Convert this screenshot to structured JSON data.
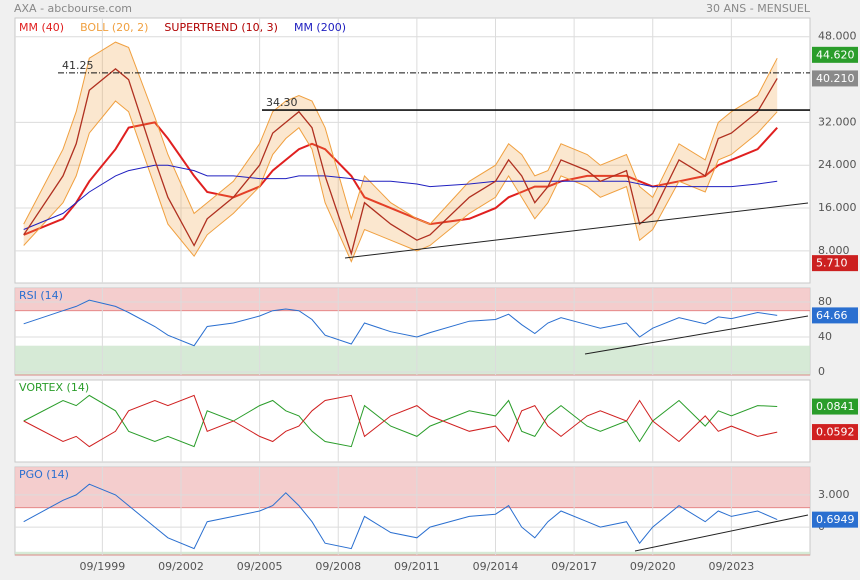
{
  "header": {
    "title": "AXA - abcbourse.com",
    "period": "30 ANS - MENSUEL"
  },
  "time": {
    "x": [
      "09/1996",
      "03/1998",
      "09/1998",
      "03/1999",
      "03/2000",
      "09/2000",
      "09/2001",
      "03/2002",
      "03/2003",
      "09/2003",
      "09/2004",
      "09/2005",
      "03/2006",
      "09/2006",
      "03/2007",
      "09/2007",
      "03/2008",
      "03/2009",
      "09/2009",
      "09/2010",
      "09/2011",
      "03/2012",
      "09/2013",
      "09/2014",
      "03/2015",
      "09/2015",
      "03/2016",
      "09/2016",
      "03/2017",
      "03/2018",
      "09/2018",
      "09/2019",
      "03/2020",
      "09/2020",
      "09/2021",
      "09/2022",
      "03/2023",
      "09/2023",
      "09/2024",
      "06/2025"
    ],
    "xlim": [
      "05/1996",
      "09/2026"
    ],
    "xticks": [
      "09/1999",
      "09/2002",
      "09/2005",
      "09/2008",
      "09/2011",
      "09/2014",
      "09/2017",
      "09/2020",
      "09/2023"
    ]
  },
  "chart_data": [
    {
      "type": "line",
      "ylim": [
        2,
        51.5
      ],
      "yticks": [
        {
          "value": 8,
          "label": "8.000"
        },
        {
          "value": 16,
          "label": "16.000"
        },
        {
          "value": 24,
          "label": "24.000"
        },
        {
          "value": 32,
          "label": "32.000"
        },
        {
          "value": 48,
          "label": "48.000"
        }
      ],
      "grid": true,
      "price": {
        "color": "#b03020",
        "values": [
          11,
          22,
          28,
          38,
          42,
          40,
          25,
          18,
          9,
          14,
          18,
          24,
          30,
          32,
          34,
          31,
          22,
          7.5,
          17,
          13,
          10,
          11,
          18,
          21,
          25,
          22,
          17,
          20,
          25,
          23,
          21,
          23,
          13,
          15,
          25,
          22,
          29,
          30,
          34,
          40.21
        ]
      },
      "series": [
        {
          "name": "MM (40)",
          "color": "#e02020",
          "values": [
            11,
            14,
            17,
            21,
            27,
            31,
            32,
            29,
            22,
            19,
            18,
            20,
            23,
            25,
            27,
            28,
            27,
            22,
            18,
            16,
            14,
            13,
            14,
            16,
            18,
            19,
            20,
            20,
            21,
            22,
            22,
            22,
            21,
            20,
            21,
            22,
            24,
            25,
            27,
            31
          ]
        },
        {
          "name": "BOLL (20, 2)",
          "color": "#f0a040",
          "values": [
            13,
            27,
            34,
            44,
            47,
            46,
            33,
            26,
            15,
            17,
            21,
            28,
            34,
            36,
            37,
            36,
            31,
            14,
            22,
            17,
            14,
            13,
            21,
            24,
            28,
            26,
            22,
            23,
            28,
            26,
            24,
            26,
            20,
            18,
            28,
            25,
            32,
            34,
            37,
            44
          ],
          "lower": [
            9,
            17,
            22,
            30,
            36,
            34,
            20,
            13,
            7,
            11,
            15,
            20,
            26,
            29,
            31,
            27,
            17,
            6,
            12,
            10,
            8,
            9,
            15,
            18,
            22,
            18,
            14,
            17,
            22,
            20,
            18,
            20,
            10,
            12,
            21,
            19,
            25,
            26,
            30,
            34
          ]
        },
        {
          "name": "SUPERTREND (10, 3)",
          "color": "#b00000"
        },
        {
          "name": "MM (200)",
          "color": "#2020c0",
          "values": [
            12,
            15,
            17,
            19,
            22,
            23,
            24,
            24,
            23,
            22,
            22,
            21.5,
            21.5,
            21.5,
            22,
            22,
            22,
            21.5,
            21,
            21,
            20.5,
            20,
            20.5,
            21,
            21,
            21,
            21,
            21,
            21,
            21,
            21,
            21,
            20.5,
            20,
            20,
            20,
            20,
            20,
            20.5,
            21
          ]
        }
      ],
      "levels": [
        {
          "value": 41.25,
          "label": "41.25",
          "style": "dashdot"
        },
        {
          "value": 34.3,
          "label": "34.30",
          "style": "solid"
        }
      ],
      "price_labels": [
        {
          "value": 44.62,
          "label": "44.620",
          "color": "#2a9d2a"
        },
        {
          "value": 40.21,
          "label": "40.210",
          "color": "#8a8a8a"
        },
        {
          "value": 5.71,
          "label": "5.710",
          "color": "#cc2020"
        }
      ]
    },
    {
      "type": "line",
      "title": "RSI (14)",
      "ylim": [
        -3.5,
        96
      ],
      "yticks": [
        0,
        40,
        80
      ],
      "grid": true,
      "zones": [
        {
          "from": 70,
          "to": 96,
          "color": "#f2c4c4"
        },
        {
          "from": -3.5,
          "to": 30,
          "color": "#cfe6cf"
        }
      ],
      "series": [
        {
          "color": "#2a6fd0",
          "values": [
            55,
            70,
            75,
            82,
            75,
            68,
            52,
            42,
            30,
            52,
            56,
            64,
            70,
            72,
            70,
            60,
            42,
            32,
            56,
            46,
            40,
            45,
            58,
            60,
            66,
            54,
            44,
            56,
            62,
            54,
            50,
            56,
            40,
            50,
            62,
            55,
            63,
            61,
            68,
            64.66
          ]
        }
      ],
      "last_labels": [
        {
          "value": 64.66,
          "label": "64.66",
          "color": "#2a6fd0"
        }
      ]
    },
    {
      "type": "line",
      "title": "VORTEX (14)",
      "ylim": [
        0.03,
        0.11
      ],
      "yticks": [],
      "grid": true,
      "series": [
        {
          "color": "#2a9d2a",
          "values": [
            0.07,
            0.09,
            0.085,
            0.095,
            0.08,
            0.06,
            0.05,
            0.055,
            0.045,
            0.08,
            0.07,
            0.085,
            0.09,
            0.08,
            0.075,
            0.06,
            0.05,
            0.045,
            0.085,
            0.065,
            0.055,
            0.065,
            0.08,
            0.075,
            0.09,
            0.06,
            0.055,
            0.075,
            0.085,
            0.065,
            0.06,
            0.07,
            0.05,
            0.07,
            0.09,
            0.065,
            0.08,
            0.075,
            0.085,
            0.0841
          ]
        },
        {
          "color": "#d02020",
          "values": [
            0.07,
            0.05,
            0.055,
            0.045,
            0.06,
            0.08,
            0.09,
            0.085,
            0.095,
            0.06,
            0.07,
            0.055,
            0.05,
            0.06,
            0.065,
            0.08,
            0.09,
            0.095,
            0.055,
            0.075,
            0.085,
            0.075,
            0.06,
            0.065,
            0.05,
            0.08,
            0.085,
            0.065,
            0.055,
            0.075,
            0.08,
            0.07,
            0.09,
            0.07,
            0.05,
            0.075,
            0.06,
            0.065,
            0.055,
            0.0592
          ]
        }
      ],
      "last_labels": [
        {
          "value": 0.0841,
          "label": "0.0841",
          "color": "#2a9d2a"
        },
        {
          "value": 0.0592,
          "label": "0.0592",
          "color": "#d02020"
        }
      ]
    },
    {
      "type": "line",
      "title": "PGO (14)",
      "ylim": [
        -2.6,
        5.6
      ],
      "yticks": [
        {
          "value": 3,
          "label": "3.000"
        },
        0
      ],
      "grid": true,
      "zones": [
        {
          "from": 1.8,
          "to": 5.6,
          "color": "#f2c4c4"
        },
        {
          "from": -2.6,
          "to": -2.3,
          "color": "#cfe6cf"
        }
      ],
      "series": [
        {
          "color": "#2a6fd0",
          "values": [
            0.5,
            2.5,
            3,
            4,
            3,
            2,
            0,
            -1,
            -2,
            0.5,
            1,
            1.5,
            2,
            3.2,
            2,
            0.5,
            -1.5,
            -2,
            1,
            -0.5,
            -1,
            0,
            1,
            1.2,
            2,
            0,
            -1,
            0.5,
            1.5,
            0.5,
            0,
            0.5,
            -1.5,
            0,
            2,
            0.5,
            1.5,
            1,
            1.5,
            0.6949
          ]
        }
      ],
      "last_labels": [
        {
          "value": 0.6949,
          "label": "0.6949",
          "color": "#2a6fd0"
        }
      ]
    }
  ]
}
